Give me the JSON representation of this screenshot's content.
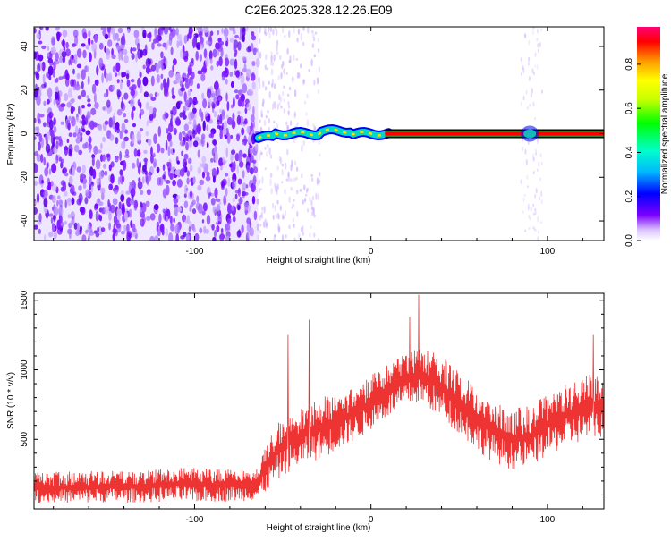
{
  "title": "C2E6.2025.328.12.26.E09",
  "chart_data": [
    {
      "type": "heatmap",
      "xlabel": "Height of straight line (km)",
      "ylabel": "Frequency (Hz)",
      "xlim": [
        -191,
        132
      ],
      "ylim": [
        -49,
        49
      ],
      "xticks": [
        -100,
        0,
        100
      ],
      "yticks": [
        -40,
        -20,
        0,
        20,
        40
      ],
      "colorbar": {
        "label": "Normalized spectral amplitude",
        "range": [
          0.0,
          0.97
        ],
        "ticks": [
          0.0,
          0.2,
          0.4,
          0.6,
          0.8
        ],
        "colors": [
          "#ffffff",
          "#b98cff",
          "#6f00ff",
          "#0000ff",
          "#00b7ff",
          "#00ffcc",
          "#00ff00",
          "#c8ff00",
          "#ffff00",
          "#ff9900",
          "#ff0000",
          "#ff0077"
        ]
      },
      "features": {
        "noise_region_x": [
          -191,
          -64
        ],
        "carrier_frequency_hz": 0,
        "carrier_x": [
          -64,
          132
        ],
        "carrier_center_color": "#ff0000",
        "carrier_edge_color": "#1b8a3a",
        "carrier_outline_color": "#000000",
        "noise_color": "#6f00ff"
      }
    },
    {
      "type": "line",
      "xlabel": "Height of straight line (km)",
      "ylabel": "SNR (10 * v/v)",
      "xlim": [
        -191,
        132
      ],
      "ylim": [
        0,
        1550
      ],
      "xticks": [
        -100,
        0,
        100
      ],
      "yticks": [
        500,
        1000,
        1500
      ],
      "color": "#ee3333",
      "envelope": {
        "x": [
          -191,
          -170,
          -150,
          -130,
          -110,
          -90,
          -75,
          -64,
          -55,
          -45,
          -35,
          -25,
          -15,
          -5,
          5,
          15,
          25,
          30,
          40,
          50,
          60,
          70,
          80,
          90,
          100,
          110,
          120,
          132
        ],
        "low": [
          40,
          40,
          45,
          45,
          50,
          50,
          55,
          60,
          180,
          280,
          330,
          380,
          450,
          520,
          620,
          700,
          760,
          740,
          650,
          540,
          420,
          330,
          280,
          300,
          380,
          440,
          480,
          520
        ],
        "high": [
          260,
          270,
          280,
          270,
          300,
          290,
          300,
          320,
          600,
          700,
          780,
          820,
          860,
          920,
          1000,
          1080,
          1150,
          1180,
          1100,
          980,
          880,
          780,
          720,
          740,
          820,
          900,
          960,
          1000
        ]
      },
      "peaks": [
        {
          "x": -35,
          "y": 1360
        },
        {
          "x": -47,
          "y": 1250
        },
        {
          "x": 27,
          "y": 1540
        },
        {
          "x": 22,
          "y": 1380
        },
        {
          "x": 126,
          "y": 1250
        }
      ]
    }
  ]
}
